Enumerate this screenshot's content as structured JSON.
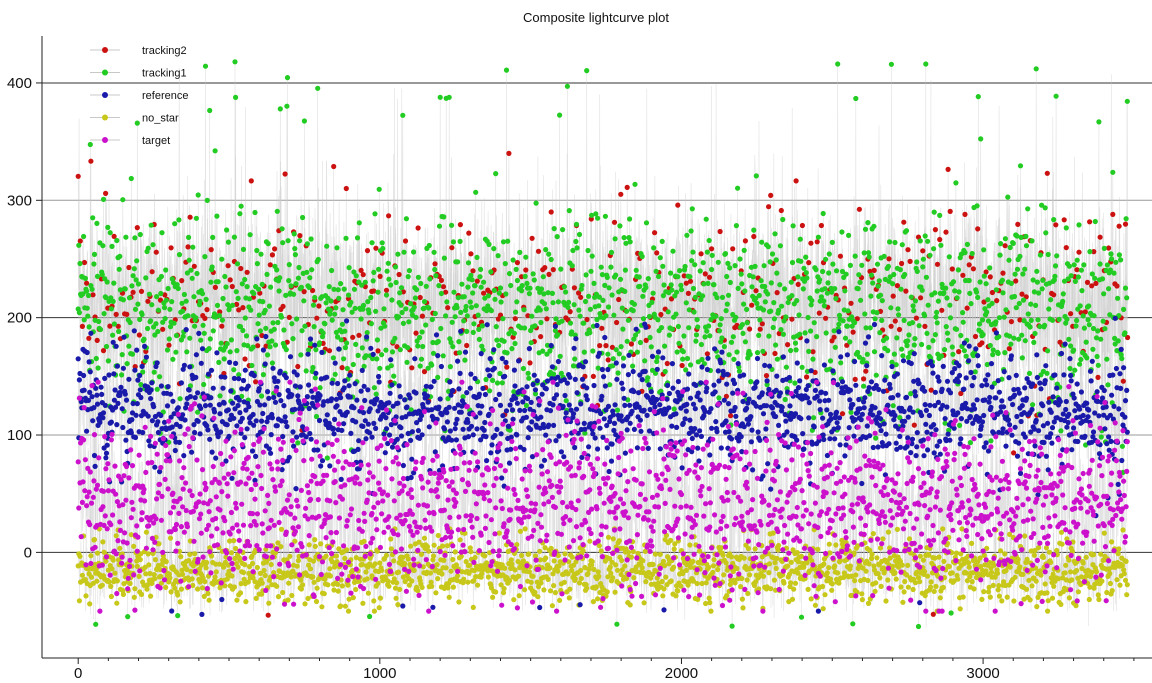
{
  "chart_data": {
    "type": "scatter",
    "title": "Composite lightcurve plot",
    "xlabel": "",
    "ylabel": "",
    "xlim": [
      -120,
      3560
    ],
    "ylim": [
      -90,
      440
    ],
    "x_ticks": [
      0,
      1000,
      2000,
      3000
    ],
    "y_ticks": [
      0,
      100,
      200,
      300,
      400
    ],
    "grid": {
      "horizontal": true,
      "vertical": false
    },
    "legend_position": "top-left",
    "n_points_per_series": 3480,
    "x_range": [
      0,
      3480
    ],
    "connecting_lines": true,
    "series": [
      {
        "name": "tracking2",
        "color": "#cc1111",
        "mean": 215,
        "spread": 38,
        "min": -55,
        "max": 340
      },
      {
        "name": "tracking1",
        "color": "#22cc22",
        "mean": 205,
        "spread": 42,
        "min": -65,
        "max": 418
      },
      {
        "name": "reference",
        "color": "#1a1aaa",
        "mean": 120,
        "spread": 25,
        "min": -58,
        "max": 200
      },
      {
        "name": "no_star",
        "color": "#c8c81a",
        "mean": -15,
        "spread": 13,
        "min": -50,
        "max": 20
      },
      {
        "name": "target",
        "color": "#cc11cc",
        "mean": 40,
        "spread": 35,
        "min": -50,
        "max": 145
      }
    ]
  }
}
